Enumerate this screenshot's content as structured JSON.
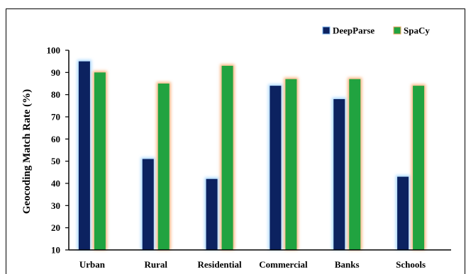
{
  "chart_data": {
    "type": "bar",
    "title": "",
    "xlabel": "",
    "ylabel": "Geocoding Match Rate (%)",
    "ylim": [
      10,
      100
    ],
    "yticks": [
      10,
      20,
      30,
      40,
      50,
      60,
      70,
      80,
      90,
      100
    ],
    "grid": false,
    "legend_position": "top-right",
    "categories": [
      "Urban",
      "Rural",
      "Residential",
      "Commercial",
      "Banks",
      "Schools"
    ],
    "series": [
      {
        "name": "DeepParse",
        "color": "#0c2260",
        "glow": "#a8d8ff",
        "values": [
          95,
          51,
          42,
          84,
          78,
          43
        ]
      },
      {
        "name": "SpaCy",
        "color": "#21a340",
        "glow": "#f8b27a",
        "values": [
          90,
          85,
          93,
          87,
          87,
          84
        ]
      }
    ]
  }
}
